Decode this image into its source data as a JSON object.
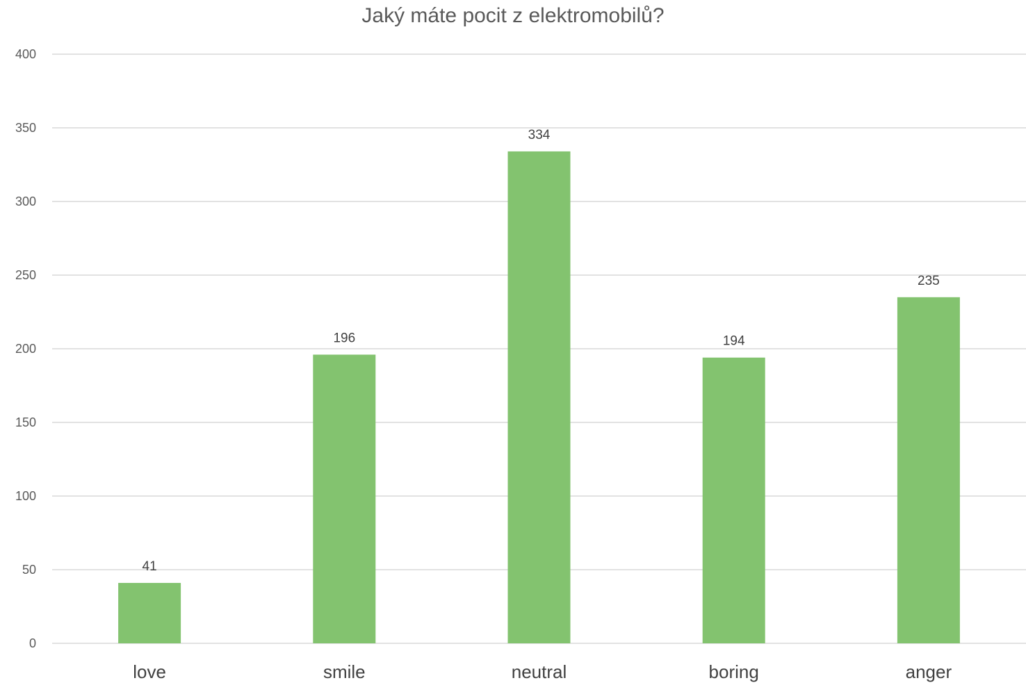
{
  "chart_data": {
    "type": "bar",
    "title": "Jaký máte pocit z elektromobilů?",
    "xlabel": "",
    "ylabel": "",
    "categories": [
      "love",
      "smile",
      "neutral",
      "boring",
      "anger"
    ],
    "values": [
      41,
      196,
      334,
      194,
      235
    ],
    "ylim": [
      0,
      400
    ],
    "yticks": [
      0,
      50,
      100,
      150,
      200,
      250,
      300,
      350,
      400
    ],
    "grid": true,
    "legend": "none",
    "data_labels": true,
    "bar_color": "#83c36f",
    "grid_color": "#d9d9d9"
  }
}
